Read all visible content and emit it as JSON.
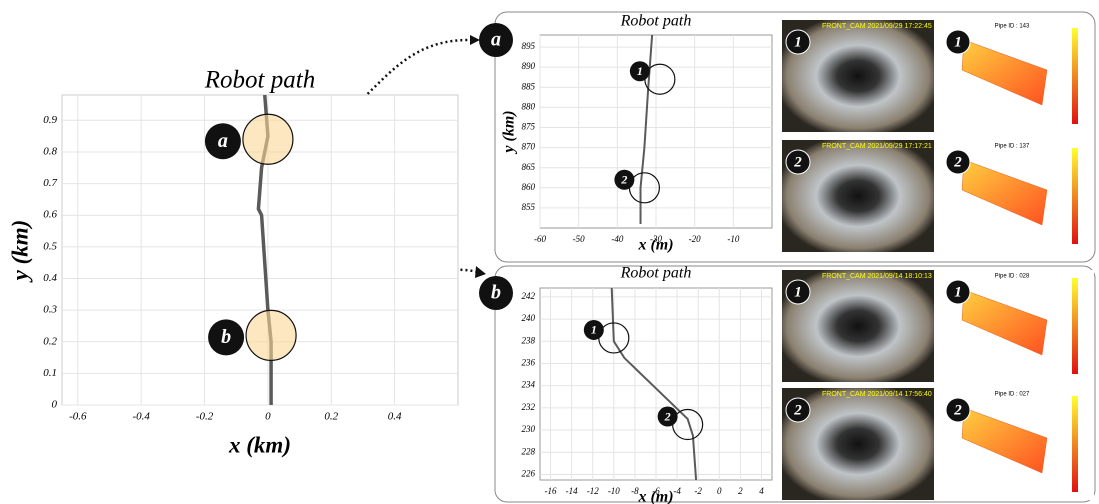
{
  "chart_data": [
    {
      "type": "line",
      "title": "Robot path",
      "xlabel": "x (km)",
      "ylabel": "y (km)",
      "xlim": [
        -0.65,
        0.6
      ],
      "xticks": [
        -0.6,
        -0.4,
        -0.2,
        0,
        0.2,
        0.4
      ],
      "ylim": [
        0,
        0.98
      ],
      "yticks": [
        0,
        0.1,
        0.2,
        0.3,
        0.4,
        0.5,
        0.6,
        0.7,
        0.8,
        0.9
      ],
      "grid": true,
      "series": [
        {
          "color": "#5a5a5a",
          "x": [
            -0.01,
            0.0,
            -0.02,
            -0.03,
            -0.02,
            -0.01,
            0.0,
            0.01,
            0.01
          ],
          "values": [
            0.98,
            0.85,
            0.75,
            0.62,
            0.6,
            0.45,
            0.3,
            0.2,
            0
          ]
        }
      ],
      "markers": [
        {
          "label": "a",
          "x": 0.0,
          "y": 0.84
        },
        {
          "label": "b",
          "x": 0.01,
          "y": 0.22
        }
      ]
    },
    {
      "type": "line",
      "title": "Robot path",
      "xlabel": "x (m)",
      "ylabel": "y (km)",
      "xlim": [
        -60,
        0
      ],
      "xticks": [
        -60,
        -50,
        -40,
        -30,
        -20,
        -10
      ],
      "ylim": [
        850,
        898
      ],
      "yticks": [
        855,
        860,
        865,
        870,
        875,
        880,
        885,
        890,
        895
      ],
      "grid": true,
      "series": [
        {
          "color": "#5a5a5a",
          "x": [
            -31,
            -32,
            -33,
            -34,
            -34
          ],
          "values": [
            898,
            885,
            870,
            860,
            851
          ]
        }
      ],
      "markers": [
        {
          "label": "1",
          "x": -29,
          "y": 887
        },
        {
          "label": "2",
          "x": -33,
          "y": 860
        }
      ]
    },
    {
      "type": "line",
      "title": "Robot path",
      "xlabel": "x (m)",
      "xlim": [
        -17,
        5
      ],
      "xticks": [
        -16,
        -14,
        -12,
        -10,
        -8,
        -6,
        -4,
        -2,
        0,
        2,
        4
      ],
      "ylim": [
        225.5,
        242.8
      ],
      "yticks": [
        226,
        228,
        230,
        232,
        234,
        236,
        238,
        240,
        242
      ],
      "grid": true,
      "series": [
        {
          "color": "#5a5a5a",
          "x": [
            -10.2,
            -10,
            -9,
            -3,
            -2.5,
            -2.2
          ],
          "values": [
            242.8,
            238,
            236.5,
            231,
            229.5,
            225.5
          ]
        }
      ],
      "markers": [
        {
          "label": "1",
          "x": -10,
          "y": 238.3
        },
        {
          "label": "2",
          "x": -3,
          "y": 230.5
        }
      ]
    }
  ],
  "photos": [
    {
      "badge": "1",
      "caption": "FRONT_CAM 2021/09/29 17:22:45"
    },
    {
      "badge": "2",
      "caption": "FRONT_CAM 2021/09/29 17:17:21"
    },
    {
      "badge": "1",
      "caption": "FRONT_CAM 2021/09/14 18:10:13"
    },
    {
      "badge": "2",
      "caption": "FRONT_CAM 2021/09/14 17:56:40"
    },
    {
      "badge": "1",
      "caption": "Pipe ID : 143"
    },
    {
      "badge": "2",
      "caption": "Pipe ID : 137"
    },
    {
      "badge": "1",
      "caption": "Pipe ID : 028"
    },
    {
      "badge": "2",
      "caption": "Pipe ID : 027"
    }
  ]
}
